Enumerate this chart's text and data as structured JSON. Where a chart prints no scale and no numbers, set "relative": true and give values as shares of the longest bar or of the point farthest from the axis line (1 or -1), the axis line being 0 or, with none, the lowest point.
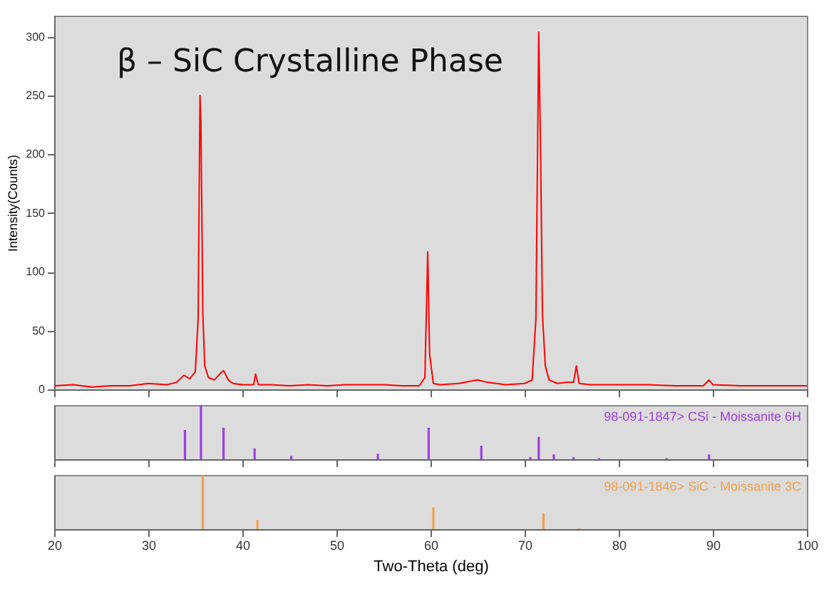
{
  "chart_data": [
    {
      "type": "line",
      "title": "β – SiC Crystalline Phase",
      "ylabel": "Intensity(Counts)",
      "xlim": [
        20,
        100
      ],
      "xticks": [
        20,
        30,
        40,
        50,
        60,
        70,
        80,
        90,
        100
      ],
      "ylim": [
        0,
        318
      ],
      "yticks": [
        0,
        50,
        100,
        150,
        200,
        250,
        300
      ],
      "tick_labels": "y",
      "series": [
        {
          "color": "#ff0000",
          "x": [
            20,
            22,
            24,
            26,
            28,
            30,
            32,
            33,
            33.8,
            34.4,
            35,
            35.3,
            35.5,
            35.6,
            35.8,
            36,
            36.4,
            37,
            37.6,
            38,
            38.5,
            39,
            40,
            41.2,
            41.4,
            41.7,
            43,
            45,
            47,
            49,
            51,
            53,
            55,
            57,
            58.8,
            59.4,
            59.7,
            59.9,
            60.3,
            61,
            63,
            65,
            66,
            68,
            70,
            70.8,
            71.2,
            71.5,
            71.7,
            71.9,
            72.2,
            72.6,
            73.5,
            74.5,
            75.2,
            75.5,
            75.8,
            77,
            80,
            83,
            86,
            89,
            89.6,
            90,
            93,
            96,
            100
          ],
          "values": [
            3,
            4,
            2,
            3,
            3,
            5,
            4,
            6,
            12,
            9,
            15,
            60,
            250,
            225,
            65,
            20,
            10,
            8,
            13,
            16,
            8,
            5,
            4,
            4,
            13,
            4,
            4,
            3,
            4,
            3,
            4,
            4,
            4,
            3,
            3,
            10,
            117,
            30,
            5,
            4,
            5,
            8,
            6,
            4,
            5,
            8,
            60,
            304,
            200,
            63,
            20,
            8,
            5,
            6,
            6,
            20,
            5,
            4,
            4,
            4,
            3,
            3,
            8,
            4,
            3,
            3,
            3
          ]
        }
      ]
    },
    {
      "type": "bar",
      "relative": true,
      "xlim": [
        20,
        100
      ],
      "xticks": [
        20,
        30,
        40,
        50,
        60,
        70,
        80,
        90,
        100
      ],
      "tick_labels": false,
      "series": [
        {
          "name": "98-091-1847> CSi - Moissanite 6H",
          "color": "#9b3fe0",
          "x": [
            33.9,
            35.6,
            38.0,
            41.3,
            45.2,
            54.4,
            59.8,
            65.4,
            70.6,
            71.5,
            73.1,
            75.2,
            77.9,
            85.1,
            89.6
          ],
          "values": [
            0.54,
            1.0,
            0.58,
            0.2,
            0.06,
            0.1,
            0.58,
            0.25,
            0.04,
            0.41,
            0.09,
            0.04,
            0.02,
            0.02,
            0.09
          ]
        }
      ]
    },
    {
      "type": "bar",
      "relative": true,
      "xlabel": "Two-Theta (deg)",
      "xlim": [
        20,
        100
      ],
      "xticks": [
        20,
        30,
        40,
        50,
        60,
        70,
        80,
        90,
        100
      ],
      "tick_labels": "x",
      "series": [
        {
          "name": "98-091-1846> SiC - Moissanite 3C",
          "color": "#f0a050",
          "x": [
            35.8,
            41.6,
            60.3,
            72.0,
            75.8
          ],
          "values": [
            1.0,
            0.17,
            0.4,
            0.29,
            0.02
          ]
        }
      ]
    }
  ]
}
